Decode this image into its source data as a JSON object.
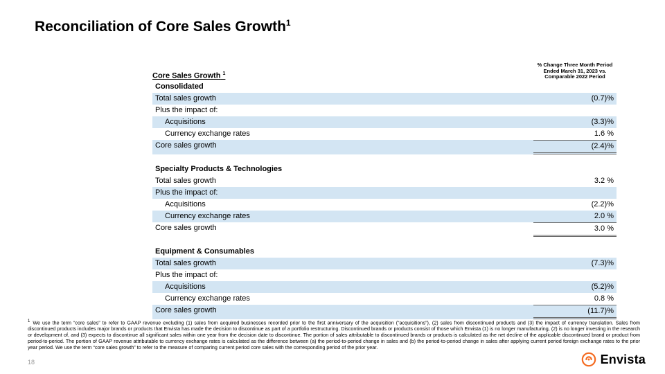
{
  "title": "Reconciliation of Core Sales Growth",
  "title_sup": "1",
  "table": {
    "header_left": "Core Sales Growth",
    "header_left_sup": "1",
    "header_right": "% Change Three Month Period Ended March 31, 2023 vs. Comparable 2022 Period",
    "shade_color": "#d3e5f3",
    "sections": [
      {
        "name": "Consolidated",
        "rows": [
          {
            "label": "Total sales growth",
            "value": "(0.7)%",
            "shaded": true
          },
          {
            "label": "Plus the impact of:",
            "value": "",
            "shaded": false
          },
          {
            "label": "Acquisitions",
            "value": "(3.3)%",
            "shaded": true,
            "indent": true
          },
          {
            "label": "Currency exchange rates",
            "value": "1.6 %",
            "shaded": false,
            "indent": true
          },
          {
            "label": "Core sales growth",
            "value": "(2.4)%",
            "shaded": true,
            "rule_top": true,
            "rule_dbl": true
          }
        ]
      },
      {
        "name": "Specialty Products & Technologies",
        "rows": [
          {
            "label": "Total sales growth",
            "value": "3.2 %",
            "shaded": false
          },
          {
            "label": "Plus the impact of:",
            "value": "",
            "shaded": true
          },
          {
            "label": "Acquisitions",
            "value": "(2.2)%",
            "shaded": false,
            "indent": true
          },
          {
            "label": "Currency exchange rates",
            "value": "2.0 %",
            "shaded": true,
            "indent": true
          },
          {
            "label": "Core sales growth",
            "value": "3.0 %",
            "shaded": false,
            "rule_top": true,
            "rule_dbl": true
          }
        ]
      },
      {
        "name": "Equipment & Consumables",
        "rows": [
          {
            "label": "Total sales growth",
            "value": "(7.3)%",
            "shaded": true
          },
          {
            "label": "Plus the impact of:",
            "value": "",
            "shaded": false
          },
          {
            "label": "Acquisitions",
            "value": "(5.2)%",
            "shaded": true,
            "indent": true
          },
          {
            "label": "Currency exchange rates",
            "value": "0.8 %",
            "shaded": false,
            "indent": true
          },
          {
            "label": "Core sales growth",
            "value": "(11.7)%",
            "shaded": true,
            "rule_top": true,
            "rule_dbl": true
          }
        ]
      }
    ]
  },
  "footnote": {
    "mark": "1",
    "text": "We use the term “core sales” to refer to GAAP revenue excluding (1) sales from acquired businesses recorded prior to the first anniversary of the acquisition (“acquisitions”), (2) sales from discontinued products and (3) the impact of currency translation. Sales from discontinued products includes major brands or products that Envista has made the decision to discontinue as part of a portfolio restructuring. Discontinued brands or products consist of those which Envista (1) is no longer manufacturing, (2) is no longer investing in the research or development of, and (3) expects to discontinue all significant sales within one year from the decision date to discontinue. The portion of sales attributable to discontinued brands or products is calculated as the net decline of the applicable discontinued brand or product from period-to-period. The portion of GAAP revenue attributable to currency exchange rates is calculated as the difference between (a) the period-to-period change in sales and (b) the period-to-period change in sales after applying current period foreign exchange rates to the prior year period. We use the term “core sales growth” to refer to the measure of comparing current period core sales with the corresponding period of the prior year."
  },
  "page_number": "18",
  "brand": {
    "name": "Envista",
    "icon_color": "#f46a1f"
  }
}
